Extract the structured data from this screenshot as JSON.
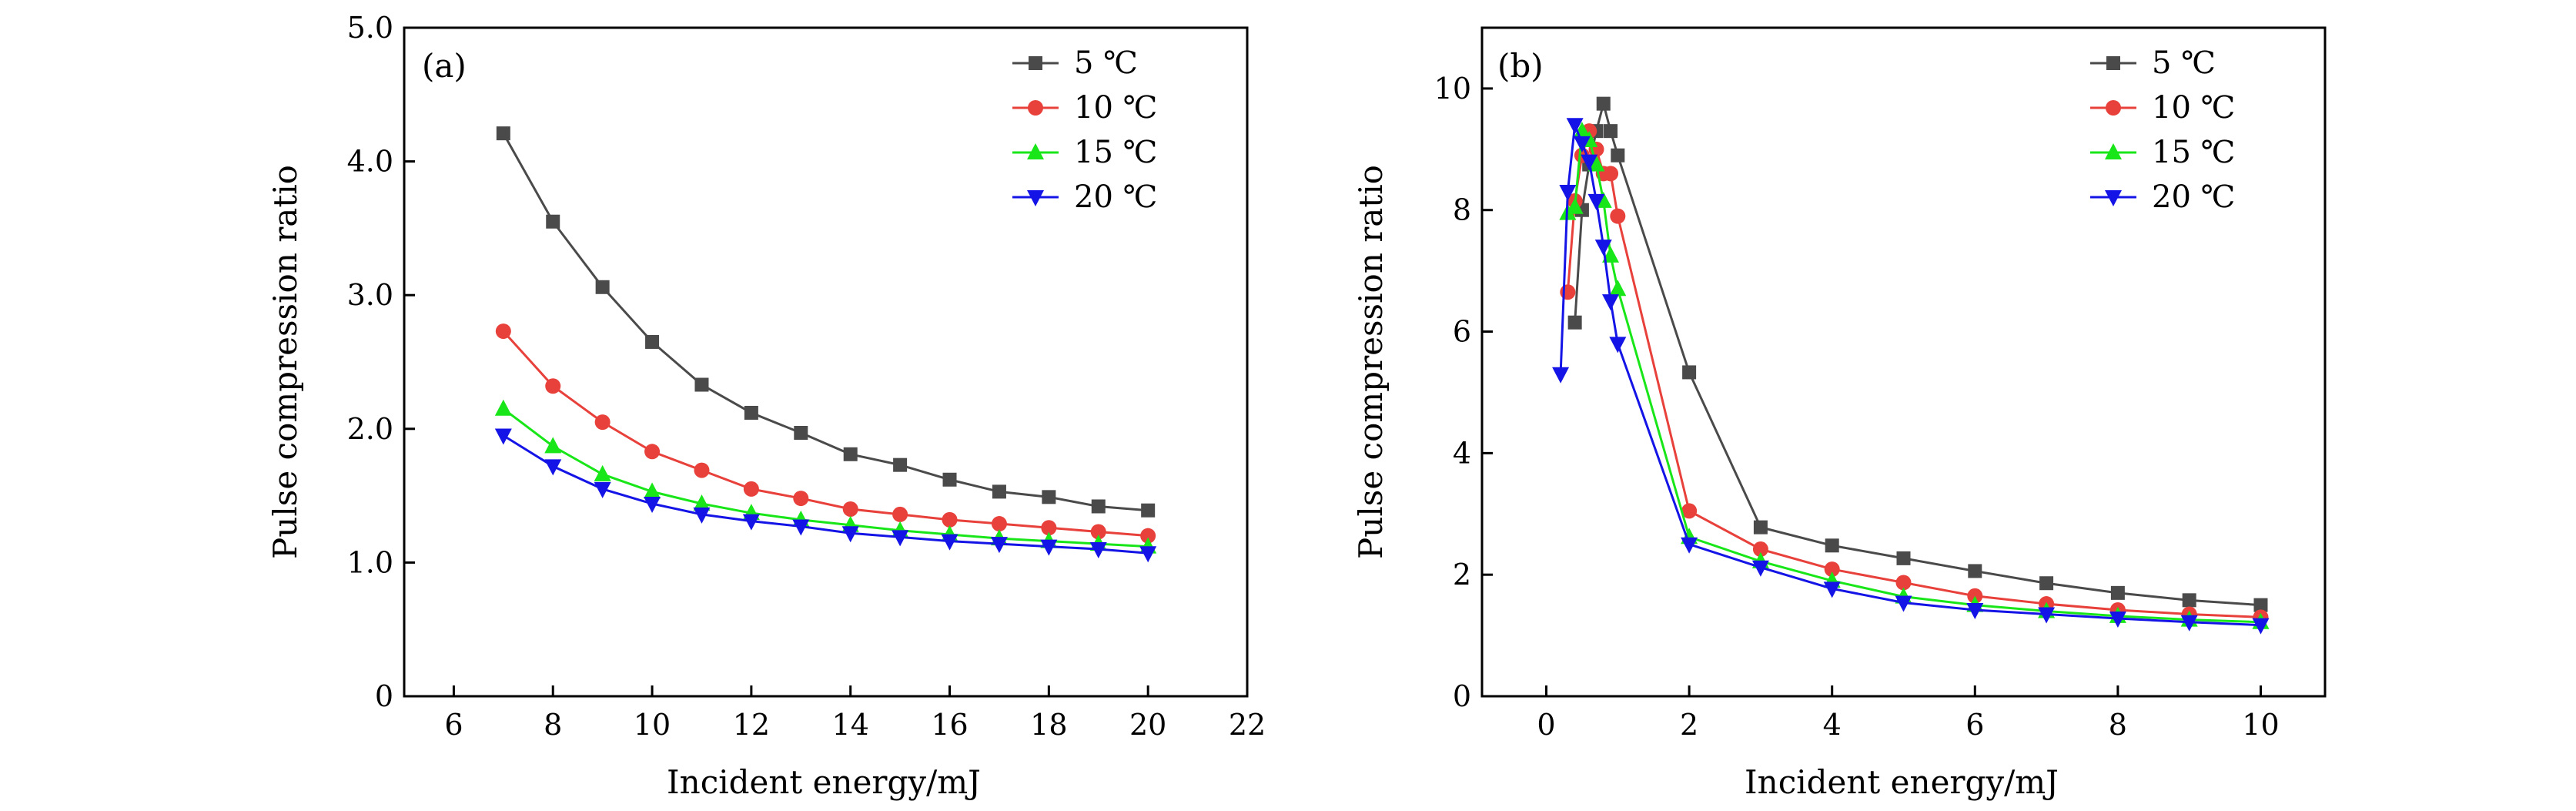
{
  "chart_data": [
    {
      "type": "line",
      "panel_label": "(a)",
      "xlabel": "Incident energy/mJ",
      "ylabel": "Pulse compression ratio",
      "xlim": [
        5,
        22
      ],
      "ylim": [
        0,
        5.0
      ],
      "xticks": [
        6,
        8,
        10,
        12,
        14,
        16,
        18,
        20,
        22
      ],
      "xtick_labels": [
        "6",
        "8",
        "10",
        "12",
        "14",
        "16",
        "18",
        "20",
        "22"
      ],
      "yticks": [
        0,
        1.0,
        2.0,
        3.0,
        4.0,
        5.0
      ],
      "ytick_labels": [
        "0",
        "1.0",
        "2.0",
        "3.0",
        "4.0",
        "5.0"
      ],
      "grid": false,
      "legend_position": "top-right",
      "x": [
        7,
        8,
        9,
        10,
        11,
        12,
        13,
        14,
        15,
        16,
        17,
        18,
        19,
        20
      ],
      "series": [
        {
          "name": "5 ℃",
          "color": "#4a4a4a",
          "marker": "square",
          "values": [
            4.21,
            3.55,
            3.06,
            2.65,
            2.33,
            2.12,
            1.97,
            1.81,
            1.73,
            1.62,
            1.53,
            1.49,
            1.42,
            1.39
          ]
        },
        {
          "name": "10 ℃",
          "color": "#e8403a",
          "marker": "circle",
          "values": [
            2.73,
            2.32,
            2.05,
            1.83,
            1.69,
            1.55,
            1.48,
            1.4,
            1.36,
            1.32,
            1.29,
            1.26,
            1.23,
            1.2
          ]
        },
        {
          "name": "15 ℃",
          "color": "#19e619",
          "marker": "triangle-up",
          "values": [
            2.15,
            1.87,
            1.66,
            1.53,
            1.44,
            1.37,
            1.32,
            1.28,
            1.24,
            1.21,
            1.18,
            1.16,
            1.14,
            1.12
          ]
        },
        {
          "name": "20 ℃",
          "color": "#1414e6",
          "marker": "triangle-down",
          "values": [
            1.95,
            1.72,
            1.55,
            1.44,
            1.36,
            1.31,
            1.27,
            1.22,
            1.19,
            1.16,
            1.14,
            1.12,
            1.1,
            1.07
          ]
        }
      ]
    },
    {
      "type": "line",
      "panel_label": "(b)",
      "xlabel": "Incident energy/mJ",
      "ylabel": "Pulse compression ratio",
      "xlim": [
        -0.9,
        10.9
      ],
      "ylim": [
        0,
        11
      ],
      "xticks": [
        0,
        2,
        4,
        6,
        8,
        10
      ],
      "xtick_labels": [
        "0",
        "2",
        "4",
        "6",
        "8",
        "10"
      ],
      "yticks": [
        0,
        2,
        4,
        6,
        8,
        10
      ],
      "ytick_labels": [
        "0",
        "2",
        "4",
        "6",
        "8",
        "10"
      ],
      "grid": false,
      "legend_position": "top-right",
      "series": [
        {
          "name": "5 ℃",
          "color": "#4a4a4a",
          "marker": "square",
          "x": [
            0.4,
            0.5,
            0.6,
            0.7,
            0.8,
            0.9,
            1,
            2,
            3,
            4,
            5,
            6,
            7,
            8,
            9,
            10
          ],
          "values": [
            6.15,
            8.0,
            8.75,
            9.3,
            9.75,
            9.3,
            8.9,
            5.33,
            2.78,
            2.48,
            2.27,
            2.06,
            1.86,
            1.7,
            1.58,
            1.5
          ]
        },
        {
          "name": "10 ℃",
          "color": "#e8403a",
          "marker": "circle",
          "x": [
            0.3,
            0.4,
            0.5,
            0.6,
            0.7,
            0.8,
            0.9,
            1,
            2,
            3,
            4,
            5,
            6,
            7,
            8,
            9,
            10
          ],
          "values": [
            6.65,
            8.15,
            8.9,
            9.3,
            9.0,
            8.6,
            8.6,
            7.9,
            3.05,
            2.42,
            2.09,
            1.87,
            1.65,
            1.52,
            1.42,
            1.35,
            1.3
          ]
        },
        {
          "name": "15 ℃",
          "color": "#19e619",
          "marker": "triangle-up",
          "x": [
            0.3,
            0.4,
            0.5,
            0.6,
            0.7,
            0.8,
            0.9,
            1,
            2,
            3,
            4,
            5,
            6,
            7,
            8,
            9,
            10
          ],
          "values": [
            7.95,
            8.05,
            9.3,
            9.15,
            8.75,
            8.15,
            7.25,
            6.7,
            2.62,
            2.22,
            1.9,
            1.64,
            1.5,
            1.4,
            1.32,
            1.26,
            1.22
          ]
        },
        {
          "name": "20 ℃",
          "color": "#1414e6",
          "marker": "triangle-down",
          "x": [
            0.2,
            0.3,
            0.4,
            0.5,
            0.6,
            0.7,
            0.8,
            0.9,
            1,
            2,
            3,
            4,
            5,
            6,
            7,
            8,
            9,
            10
          ],
          "values": [
            5.3,
            8.3,
            9.4,
            9.1,
            8.8,
            8.15,
            7.4,
            6.5,
            5.8,
            2.5,
            2.12,
            1.77,
            1.54,
            1.42,
            1.35,
            1.28,
            1.22,
            1.17
          ]
        }
      ]
    }
  ]
}
